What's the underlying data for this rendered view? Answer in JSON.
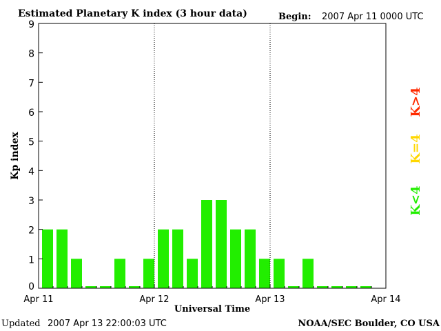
{
  "header": {
    "title": "Estimated Planetary K index (3 hour data)",
    "begin_label": "Begin:",
    "begin_value": "2007 Apr 11 0000 UTC"
  },
  "footer": {
    "updated_label": "Updated",
    "updated_value": "2007 Apr 13 22:00:03 UTC",
    "source": "NOAA/SEC Boulder, CO USA"
  },
  "legend": {
    "items": [
      {
        "label": "K>4",
        "color": "#ff2a00"
      },
      {
        "label": "K=4",
        "color": "#ffd700"
      },
      {
        "label": "K<4",
        "color": "#22ee00"
      }
    ],
    "placement": "right"
  },
  "chart_data": {
    "type": "bar",
    "title": "Estimated Planetary K index (3 hour data)",
    "xlabel": "Universal Time",
    "ylabel": "Kp index",
    "ylim": [
      0,
      9
    ],
    "yticks": [
      0,
      1,
      2,
      3,
      4,
      5,
      6,
      7,
      8,
      9
    ],
    "x_ticks": [
      "Apr 11",
      "Apr 12",
      "Apr 13",
      "Apr 14"
    ],
    "day_dividers": [
      "Apr 12",
      "Apr 13"
    ],
    "bars_per_day": 8,
    "values": [
      2,
      2,
      1,
      0,
      0,
      1,
      0,
      1,
      2,
      2,
      1,
      3,
      3,
      2,
      2,
      1,
      1,
      0,
      1,
      0,
      0,
      0,
      0
    ],
    "bar_color": "#22ee00",
    "grid": false
  }
}
